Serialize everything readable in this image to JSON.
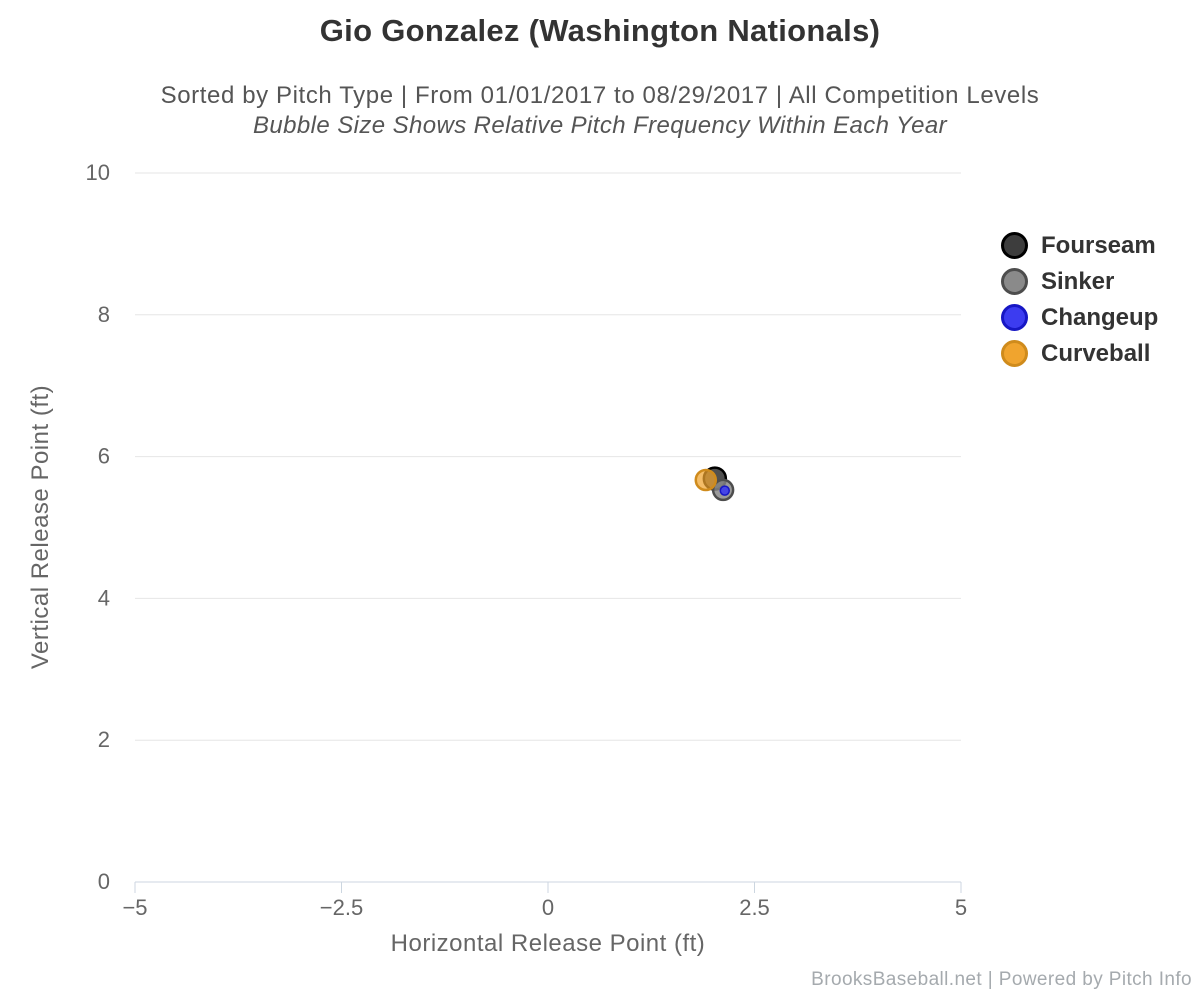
{
  "title": "Gio Gonzalez (Washington Nationals)",
  "subtitle": "Sorted by Pitch Type | From 01/01/2017 to 08/29/2017 | All Competition Levels",
  "subtitle2": "Bubble Size Shows Relative Pitch Frequency Within Each Year",
  "credits": "BrooksBaseball.net | Powered by Pitch Info",
  "colors": {
    "title_text": "#333333",
    "subtitle_text": "#555555",
    "axis_text": "#666666",
    "gridline": "#e6e6e6",
    "axis_line": "#ccd6e0",
    "legend_text": "#333333",
    "credits_text": "#a5aaae"
  },
  "chart_data": {
    "type": "scatter",
    "subtype": "bubble",
    "title": "Gio Gonzalez (Washington Nationals)",
    "xlabel": "Horizontal Release Point (ft)",
    "ylabel": "Vertical Release Point (ft)",
    "xlim": [
      -5,
      5
    ],
    "ylim": [
      0,
      10
    ],
    "xticks": [
      -5,
      -2.5,
      0,
      2.5,
      5
    ],
    "yticks": [
      0,
      2,
      4,
      6,
      8,
      10
    ],
    "xtick_labels": [
      "−5",
      "−2.5",
      "0",
      "2.5",
      "5"
    ],
    "ytick_labels": [
      "0",
      "2",
      "4",
      "6",
      "8",
      "10"
    ],
    "grid": "horizontal",
    "legend_position": "right",
    "legend_note": "bubble size = relative pitch frequency",
    "series": [
      {
        "name": "Fourseam",
        "color": "#3d3d3d",
        "border": "#000000",
        "fill_opacity": 0.9,
        "points": [
          {
            "x": 2.02,
            "y": 5.69,
            "r": 11
          }
        ]
      },
      {
        "name": "Sinker",
        "color": "#8a8a8a",
        "border": "#4d4d4d",
        "fill_opacity": 0.85,
        "points": [
          {
            "x": 2.12,
            "y": 5.53,
            "r": 10
          }
        ]
      },
      {
        "name": "Changeup",
        "color": "#3c3cf0",
        "border": "#1717c4",
        "fill_opacity": 0.9,
        "points": [
          {
            "x": 2.14,
            "y": 5.52,
            "r": 4.5
          }
        ]
      },
      {
        "name": "Curveball",
        "color": "#f0a42e",
        "border": "#cf8b1c",
        "fill_opacity": 0.72,
        "points": [
          {
            "x": 1.91,
            "y": 5.67,
            "r": 10
          }
        ]
      }
    ]
  }
}
